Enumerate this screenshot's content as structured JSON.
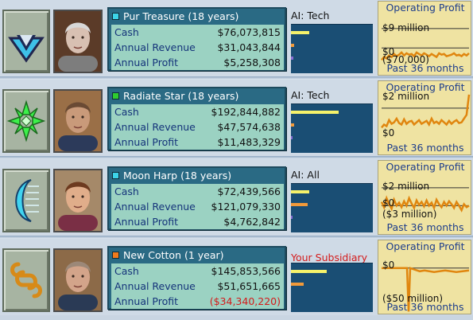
{
  "companies": [
    {
      "name": "Pur Treasure (18 years)",
      "color": "#3cd3e8",
      "cash_label": "Cash",
      "cash": "$76,073,815",
      "revenue_label": "Annual Revenue",
      "revenue": "$31,043,844",
      "profit_label": "Annual Profit",
      "profit": "$5,258,308",
      "ai": "AI: Tech",
      "bars": {
        "cash": 0.22,
        "revenue": 0.04,
        "profit": 0.03
      },
      "chart": {
        "title": "Operating Profit",
        "top_label": "$9 million",
        "zero_label": "$0",
        "bottom_label": "($70,000)",
        "footer": "Past 36 months"
      }
    },
    {
      "name": "Radiate Star (18 years)",
      "color": "#2fcc2f",
      "cash_label": "Cash",
      "cash": "$192,844,882",
      "revenue_label": "Annual Revenue",
      "revenue": "$47,574,638",
      "profit_label": "Annual Profit",
      "profit": "$11,483,329",
      "ai": "AI: Tech",
      "bars": {
        "cash": 0.58,
        "revenue": 0.04,
        "profit": 0.02
      },
      "chart": {
        "title": "Operating Profit",
        "top_label": "$2 million",
        "zero_label": "$0",
        "bottom_label": "",
        "footer": "Past 36 months"
      }
    },
    {
      "name": "Moon Harp (18 years)",
      "color": "#3cd3e8",
      "cash_label": "Cash",
      "cash": "$72,439,566",
      "revenue_label": "Annual Revenue",
      "revenue": "$121,079,330",
      "profit_label": "Annual Profit",
      "profit": "$4,762,842",
      "ai": "AI: All",
      "bars": {
        "cash": 0.22,
        "revenue": 0.2,
        "profit": 0.02
      },
      "chart": {
        "title": "Operating Profit",
        "top_label": "$2 million",
        "zero_label": "$0",
        "bottom_label": "($3 million)",
        "footer": "Past 36 months"
      }
    },
    {
      "name": "New Cotton (1 year)",
      "color": "#f07a1c",
      "cash_label": "Cash",
      "cash": "$145,853,566",
      "revenue_label": "Annual Revenue",
      "revenue": "$51,651,665",
      "profit_label": "Annual Profit",
      "profit": "($34,340,220)",
      "profit_negative": true,
      "ai": "Your Subsidiary",
      "bars": {
        "cash": 0.44,
        "revenue": 0.16,
        "profit": 0.0
      },
      "chart": {
        "title": "Operating Profit",
        "top_label": "",
        "zero_label": "$0",
        "bottom_label": "($50 million)",
        "footer": "Past 36 months"
      }
    }
  ],
  "colors": {
    "bar_cash": "#f6f26a",
    "bar_revenue": "#f29a3a",
    "chart_line": "#e0860f"
  }
}
